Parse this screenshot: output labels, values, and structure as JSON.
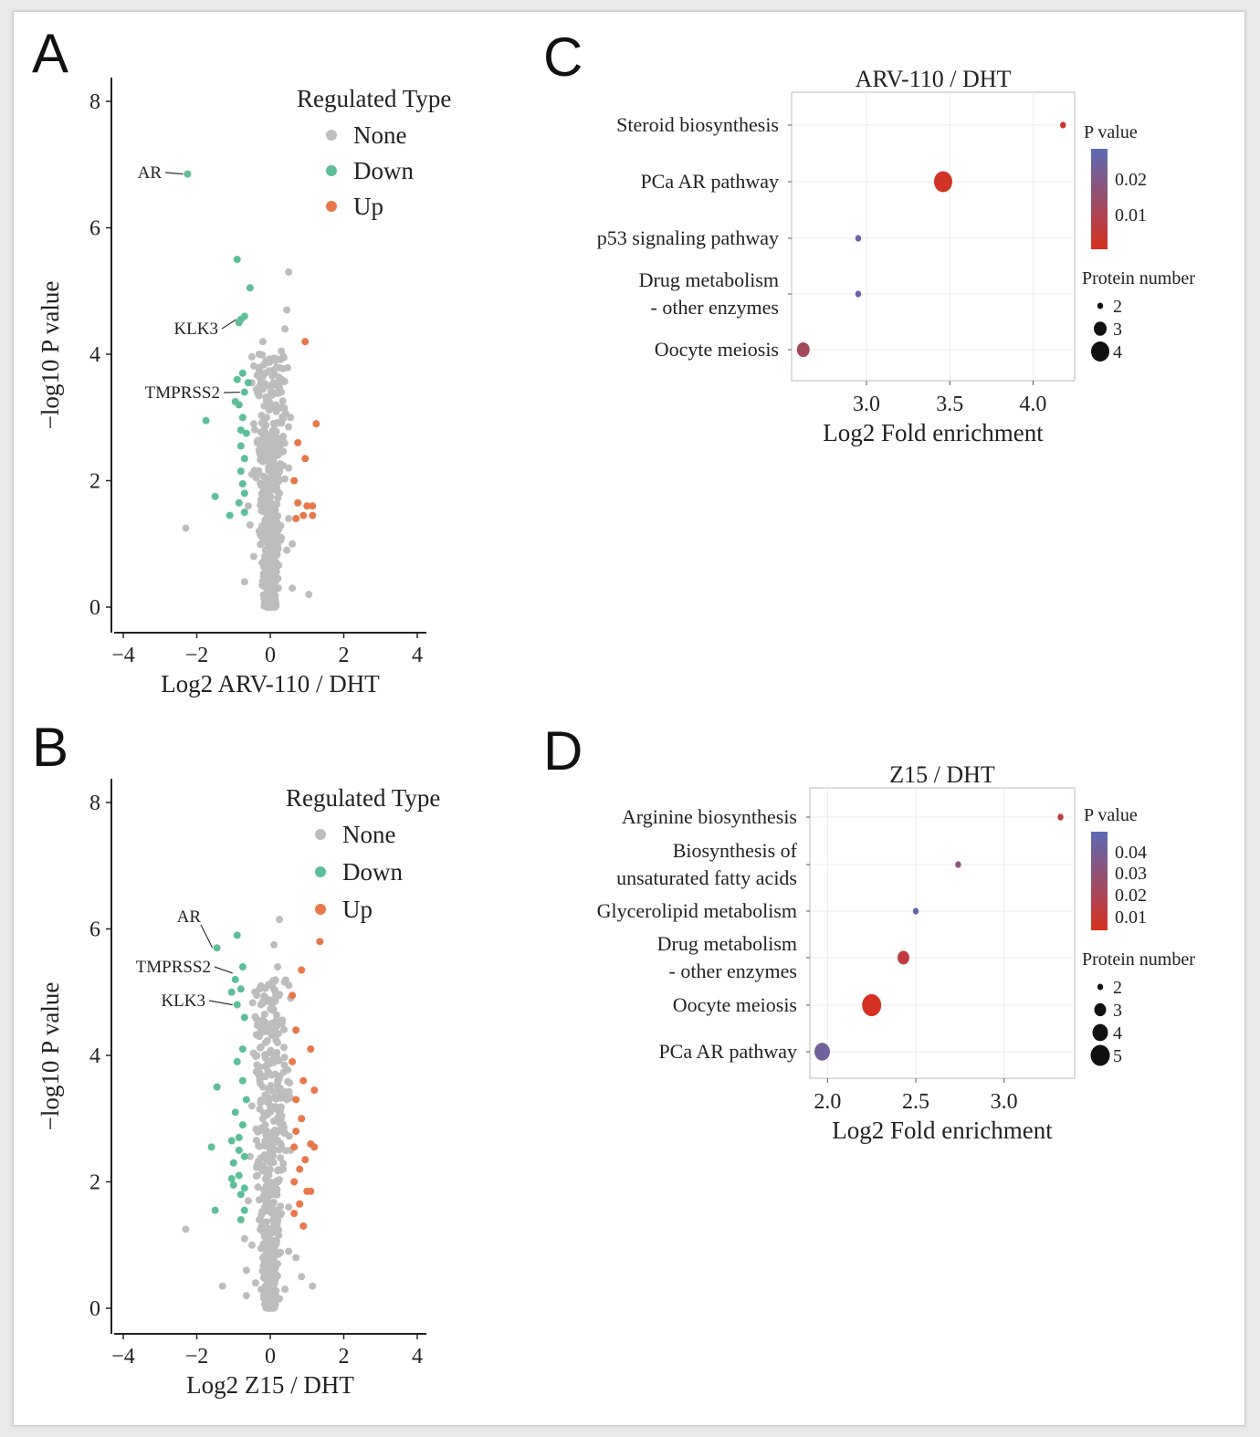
{
  "panel_labels": {
    "A": "A",
    "B": "B",
    "C": "C",
    "D": "D"
  },
  "chart_data": [
    {
      "panel": "A",
      "type": "scatter",
      "title": "",
      "xlabel": "Log2 ARV-110 / DHT",
      "ylabel": "−log10 P value",
      "xlim": [
        -4,
        4
      ],
      "ylim": [
        0,
        8
      ],
      "xticks": [
        "−4",
        "−2",
        "0",
        "2",
        "4"
      ],
      "yticks": [
        "0",
        "2",
        "4",
        "6",
        "8"
      ],
      "grid": false,
      "legend": {
        "title": "Regulated Type",
        "placement": "top-right",
        "entries": [
          "None",
          "Down",
          "Up"
        ]
      },
      "colors": {
        "None": "#bdbdbd",
        "Down": "#5cbf98",
        "Up": "#e8784a"
      },
      "annotations": [
        {
          "label": "AR",
          "x": -2.25,
          "y": 6.85
        },
        {
          "label": "KLK3",
          "x": -0.8,
          "y": 4.55
        },
        {
          "label": "TMPRSS2",
          "x": -0.7,
          "y": 3.4
        }
      ],
      "series": [
        {
          "name": "Down",
          "points": [
            [
              -2.25,
              6.85
            ],
            [
              -0.9,
              5.5
            ],
            [
              -0.55,
              5.05
            ],
            [
              -0.8,
              4.55
            ],
            [
              -0.7,
              4.6
            ],
            [
              -0.85,
              4.5
            ],
            [
              -0.75,
              3.7
            ],
            [
              -0.9,
              3.6
            ],
            [
              -0.7,
              3.4
            ],
            [
              -0.6,
              3.55
            ],
            [
              -1.75,
              2.95
            ],
            [
              -0.85,
              3.2
            ],
            [
              -0.95,
              3.25
            ],
            [
              -0.75,
              3.0
            ],
            [
              -0.8,
              2.8
            ],
            [
              -0.65,
              2.75
            ],
            [
              -0.8,
              2.55
            ],
            [
              -0.7,
              2.35
            ],
            [
              -0.8,
              2.15
            ],
            [
              -0.75,
              1.95
            ],
            [
              -1.5,
              1.75
            ],
            [
              -0.7,
              1.8
            ],
            [
              -0.85,
              1.65
            ],
            [
              -0.7,
              1.5
            ],
            [
              -1.1,
              1.45
            ]
          ]
        },
        {
          "name": "Up",
          "points": [
            [
              0.95,
              4.2
            ],
            [
              1.25,
              2.9
            ],
            [
              0.75,
              2.6
            ],
            [
              0.95,
              2.35
            ],
            [
              0.65,
              2.0
            ],
            [
              0.75,
              1.65
            ],
            [
              1.0,
              1.6
            ],
            [
              1.15,
              1.6
            ],
            [
              0.7,
              1.4
            ],
            [
              0.9,
              1.45
            ],
            [
              1.15,
              1.45
            ]
          ]
        },
        {
          "name": "None",
          "points": [
            [
              0.5,
              5.3
            ],
            [
              0.45,
              4.7
            ],
            [
              0.4,
              4.4
            ],
            [
              -0.2,
              4.2
            ],
            [
              -0.3,
              4.0
            ],
            [
              0.3,
              4.05
            ],
            [
              0.1,
              3.7
            ],
            [
              -0.1,
              3.5
            ],
            [
              0.3,
              3.4
            ],
            [
              -2.3,
              1.25
            ],
            [
              1.05,
              0.2
            ],
            [
              0.55,
              3.0
            ],
            [
              -0.45,
              2.9
            ],
            [
              0.0,
              2.6
            ],
            [
              0.0,
              2.0
            ],
            [
              0.0,
              1.5
            ],
            [
              0.0,
              1.0
            ],
            [
              0.0,
              0.5
            ],
            [
              0.0,
              0.1
            ],
            [
              -0.2,
              2.3
            ],
            [
              0.2,
              2.4
            ],
            [
              -0.25,
              1.7
            ],
            [
              0.25,
              1.8
            ],
            [
              -0.3,
              1.2
            ],
            [
              0.3,
              1.1
            ],
            [
              -0.15,
              0.7
            ],
            [
              0.15,
              0.6
            ],
            [
              -0.5,
              2.1
            ],
            [
              0.5,
              2.2
            ],
            [
              -0.55,
              1.3
            ],
            [
              0.5,
              1.4
            ],
            [
              -0.45,
              0.8
            ],
            [
              0.45,
              0.9
            ],
            [
              -0.1,
              3.0
            ],
            [
              0.15,
              3.2
            ],
            [
              -0.35,
              2.6
            ],
            [
              0.35,
              2.7
            ],
            [
              -0.6,
              1.6
            ],
            [
              0.6,
              1.0
            ],
            [
              -0.7,
              0.4
            ],
            [
              0.6,
              0.3
            ],
            [
              -0.05,
              0.25
            ],
            [
              0.1,
              1.25
            ],
            [
              -0.12,
              1.85
            ],
            [
              0.12,
              2.75
            ],
            [
              -0.22,
              0.35
            ],
            [
              0.22,
              0.3
            ]
          ]
        }
      ]
    },
    {
      "panel": "B",
      "type": "scatter",
      "title": "",
      "xlabel": "Log2 Z15 / DHT",
      "ylabel": "−log10 P value",
      "xlim": [
        -4,
        4
      ],
      "ylim": [
        0,
        8
      ],
      "xticks": [
        "−4",
        "−2",
        "0",
        "2",
        "4"
      ],
      "yticks": [
        "0",
        "2",
        "4",
        "6",
        "8"
      ],
      "grid": false,
      "legend": {
        "title": "Regulated Type",
        "placement": "top-right",
        "entries": [
          "None",
          "Down",
          "Up"
        ]
      },
      "colors": {
        "None": "#bdbdbd",
        "Down": "#5cbf98",
        "Up": "#e8784a"
      },
      "annotations": [
        {
          "label": "AR",
          "x": -1.45,
          "y": 5.7
        },
        {
          "label": "TMPRSS2",
          "x": -0.9,
          "y": 5.3
        },
        {
          "label": "KLK3",
          "x": -0.9,
          "y": 4.8
        }
      ],
      "series": [
        {
          "name": "Down",
          "points": [
            [
              -1.45,
              5.7
            ],
            [
              -0.9,
              5.9
            ],
            [
              -0.75,
              5.4
            ],
            [
              -0.95,
              5.2
            ],
            [
              -1.05,
              5.0
            ],
            [
              -0.8,
              5.05
            ],
            [
              -0.9,
              4.8
            ],
            [
              -0.7,
              4.6
            ],
            [
              -0.75,
              4.1
            ],
            [
              -0.9,
              3.9
            ],
            [
              -1.45,
              3.5
            ],
            [
              -0.75,
              3.6
            ],
            [
              -0.65,
              3.3
            ],
            [
              -0.95,
              3.1
            ],
            [
              -0.75,
              2.9
            ],
            [
              -0.85,
              2.7
            ],
            [
              -1.05,
              2.65
            ],
            [
              -0.85,
              2.5
            ],
            [
              -0.7,
              2.4
            ],
            [
              -1.6,
              2.55
            ],
            [
              -1.0,
              2.3
            ],
            [
              -0.85,
              2.1
            ],
            [
              -1.05,
              2.05
            ],
            [
              -0.7,
              1.9
            ],
            [
              -1.0,
              1.95
            ],
            [
              -0.8,
              1.8
            ],
            [
              -0.7,
              1.55
            ],
            [
              -1.5,
              1.55
            ],
            [
              -0.8,
              1.4
            ]
          ]
        },
        {
          "name": "Up",
          "points": [
            [
              1.35,
              5.8
            ],
            [
              0.85,
              5.35
            ],
            [
              0.6,
              4.95
            ],
            [
              0.7,
              4.4
            ],
            [
              1.1,
              4.1
            ],
            [
              0.6,
              3.9
            ],
            [
              0.9,
              3.6
            ],
            [
              1.2,
              3.45
            ],
            [
              0.7,
              3.3
            ],
            [
              0.85,
              3.0
            ],
            [
              0.7,
              2.8
            ],
            [
              1.1,
              2.6
            ],
            [
              1.2,
              2.55
            ],
            [
              0.65,
              2.55
            ],
            [
              0.95,
              2.35
            ],
            [
              0.8,
              2.2
            ],
            [
              0.65,
              2.0
            ],
            [
              1.0,
              1.85
            ],
            [
              1.1,
              1.85
            ],
            [
              0.8,
              1.65
            ],
            [
              0.65,
              1.5
            ],
            [
              0.9,
              1.3
            ]
          ]
        },
        {
          "name": "None",
          "points": [
            [
              0.25,
              6.15
            ],
            [
              0.1,
              5.75
            ],
            [
              0.2,
              5.4
            ],
            [
              -0.25,
              5.1
            ],
            [
              0.15,
              4.95
            ],
            [
              -0.15,
              4.65
            ],
            [
              0.3,
              4.55
            ],
            [
              -0.3,
              4.3
            ],
            [
              0.2,
              4.2
            ],
            [
              -2.3,
              1.25
            ],
            [
              -1.3,
              0.35
            ],
            [
              1.15,
              0.35
            ],
            [
              -0.65,
              0.2
            ],
            [
              -0.05,
              3.9
            ],
            [
              0.0,
              3.2
            ],
            [
              0.0,
              2.5
            ],
            [
              0.0,
              1.8
            ],
            [
              0.0,
              1.2
            ],
            [
              0.0,
              0.6
            ],
            [
              0.0,
              0.05
            ],
            [
              -0.2,
              3.5
            ],
            [
              0.2,
              3.6
            ],
            [
              -0.3,
              2.8
            ],
            [
              0.3,
              2.9
            ],
            [
              -0.35,
              2.1
            ],
            [
              0.35,
              2.2
            ],
            [
              -0.3,
              1.4
            ],
            [
              0.3,
              1.5
            ],
            [
              -0.2,
              0.8
            ],
            [
              0.2,
              0.7
            ],
            [
              -0.5,
              3.2
            ],
            [
              0.45,
              3.3
            ],
            [
              -0.55,
              2.4
            ],
            [
              0.55,
              2.5
            ],
            [
              -0.6,
              1.7
            ],
            [
              0.5,
              1.6
            ],
            [
              -0.5,
              1.0
            ],
            [
              0.5,
              0.9
            ],
            [
              -0.4,
              0.4
            ],
            [
              0.4,
              0.3
            ],
            [
              -0.1,
              4.4
            ],
            [
              0.1,
              4.0
            ],
            [
              -0.15,
              1.6
            ],
            [
              0.15,
              2.0
            ],
            [
              -0.25,
              0.3
            ],
            [
              0.25,
              0.15
            ],
            [
              -0.7,
              1.1
            ],
            [
              0.7,
              0.8
            ],
            [
              -0.65,
              0.6
            ],
            [
              0.85,
              0.5
            ]
          ]
        }
      ]
    },
    {
      "panel": "C",
      "type": "scatter",
      "title": "ARV-110 / DHT",
      "xlabel": "Log2 Fold enrichment",
      "ylabel": "",
      "xlim": [
        2.55,
        4.25
      ],
      "xticks": [
        "3.0",
        "3.5",
        "4.0"
      ],
      "grid": true,
      "categories": [
        "Steroid biosynthesis",
        "PCa AR pathway",
        "p53 signaling pathway",
        "Drug metabolism\n- other enzymes",
        "Oocyte meiosis"
      ],
      "x": [
        4.18,
        3.46,
        2.95,
        2.95,
        2.62
      ],
      "p_value": [
        0.005,
        0.004,
        0.023,
        0.023,
        0.012
      ],
      "protein_number": [
        2,
        4,
        2,
        2,
        3
      ],
      "legend": {
        "color_title": "P value",
        "color_ticks": [
          "0.02",
          "0.01"
        ],
        "size_title": "Protein number",
        "size_entries": [
          "2",
          "3",
          "4"
        ],
        "placement": "right"
      },
      "colors": {
        "low_p": "#d7301f",
        "high_p": "#5b6bb5"
      }
    },
    {
      "panel": "D",
      "type": "scatter",
      "title": "Z15 / DHT",
      "xlabel": "Log2 Fold enrichment",
      "ylabel": "",
      "xlim": [
        1.9,
        3.4
      ],
      "xticks": [
        "2.0",
        "2.5",
        "3.0"
      ],
      "grid": true,
      "categories": [
        "Arginine biosynthesis",
        "Biosynthesis of\nunsaturated fatty acids",
        "Glycerolipid metabolism",
        "Drug metabolism\n- other enzymes",
        "Oocyte meiosis",
        "PCa AR pathway"
      ],
      "x": [
        3.32,
        2.74,
        2.5,
        2.43,
        2.25,
        1.97
      ],
      "p_value": [
        0.012,
        0.03,
        0.045,
        0.012,
        0.004,
        0.04
      ],
      "protein_number": [
        2,
        2,
        2,
        3,
        5,
        4
      ],
      "legend": {
        "color_title": "P value",
        "color_ticks": [
          "0.04",
          "0.03",
          "0.02",
          "0.01"
        ],
        "size_title": "Protein number",
        "size_entries": [
          "2",
          "3",
          "4",
          "5"
        ],
        "placement": "right"
      },
      "colors": {
        "low_p": "#d7301f",
        "high_p": "#5b6bb5"
      }
    }
  ]
}
